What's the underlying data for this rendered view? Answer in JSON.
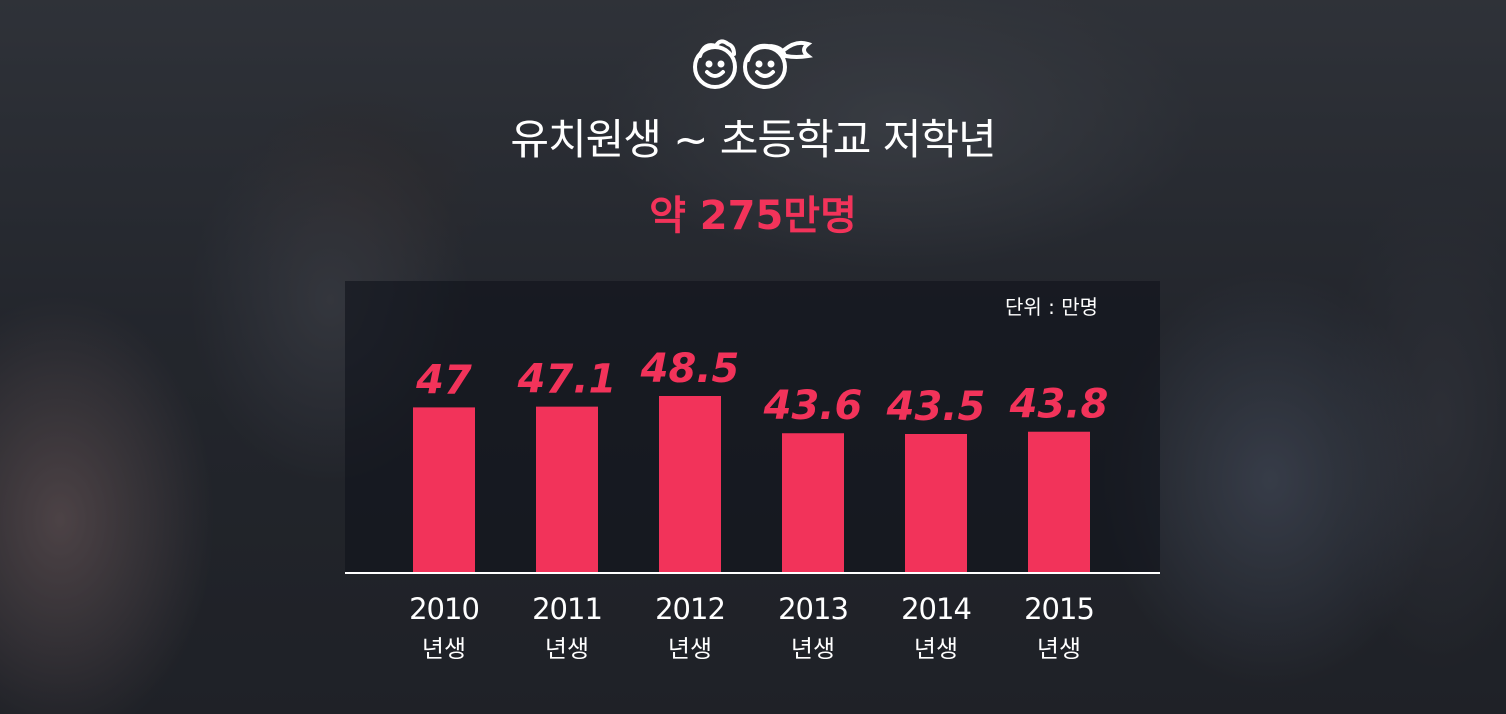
{
  "header": {
    "title": "유치원생 ~ 초등학교 저학년",
    "subtitle": "약 275만명",
    "icon": "kids-faces-icon"
  },
  "chart_data": {
    "type": "bar",
    "title": "",
    "unit_label": "단위 : 만명",
    "categories": [
      "2010",
      "2011",
      "2012",
      "2013",
      "2014",
      "2015"
    ],
    "category_suffix": "년생",
    "values": [
      47,
      47.1,
      48.5,
      43.6,
      43.5,
      43.8
    ],
    "value_labels": [
      "47",
      "47.1",
      "48.5",
      "43.6",
      "43.5",
      "43.8"
    ],
    "ylim": [
      0,
      50
    ],
    "grid": false,
    "colors": {
      "bar": "#f2335a",
      "value_text": "#f2335a",
      "axis": "#ffffff"
    }
  }
}
